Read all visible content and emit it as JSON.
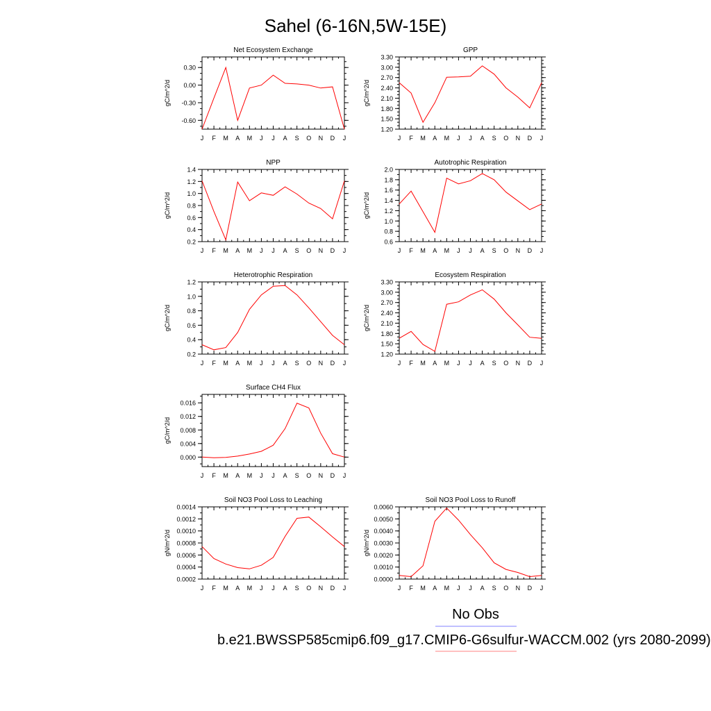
{
  "figure": {
    "title": "Sahel (6-16N,5W-15E)",
    "legend": {
      "obs_label": "No Obs",
      "obs_color": "#8080ff",
      "model_label": "b.e21.BWSSP585cmip6.f09_g17.CMIP6-G6sulfur-WACCM.002 (yrs 2080-2099)",
      "model_color": "#ff8080"
    },
    "line_color": "#ff0000"
  },
  "months": [
    "J",
    "F",
    "M",
    "A",
    "M",
    "J",
    "J",
    "A",
    "S",
    "O",
    "N",
    "D",
    "J"
  ],
  "chart_data": [
    {
      "type": "line",
      "title": "Net Ecosystem Exchange",
      "ylabel": "gC/m^2/d",
      "ylim": [
        -0.75,
        0.48
      ],
      "yticks": [
        "0.30",
        "0.00",
        "-0.30",
        "-0.60"
      ],
      "ytick_values": [
        0.3,
        0.0,
        -0.3,
        -0.6
      ],
      "minor_step": 0.1,
      "values": [
        -0.75,
        -0.22,
        0.3,
        -0.6,
        -0.05,
        0.0,
        0.17,
        0.03,
        0.02,
        0.0,
        -0.05,
        -0.03,
        -0.75
      ]
    },
    {
      "type": "line",
      "title": "GPP",
      "ylabel": "gC/m^2/d",
      "ylim": [
        1.2,
        3.3
      ],
      "yticks": [
        "3.30",
        "3.00",
        "2.70",
        "2.40",
        "2.10",
        "1.80",
        "1.50",
        "1.20"
      ],
      "ytick_values": [
        3.3,
        3.0,
        2.7,
        2.4,
        2.1,
        1.8,
        1.5,
        1.2
      ],
      "minor_step": 0.1,
      "values": [
        2.55,
        2.25,
        1.4,
        1.97,
        2.71,
        2.72,
        2.74,
        3.04,
        2.8,
        2.4,
        2.13,
        1.82,
        2.55
      ]
    },
    {
      "type": "line",
      "title": "NPP",
      "ylabel": "gC/m^2/d",
      "ylim": [
        0.2,
        1.4
      ],
      "yticks": [
        "1.4",
        "1.2",
        "1.0",
        "0.8",
        "0.6",
        "0.4",
        "0.2"
      ],
      "ytick_values": [
        1.4,
        1.2,
        1.0,
        0.8,
        0.6,
        0.4,
        0.2
      ],
      "minor_step": 0.1,
      "values": [
        1.21,
        0.7,
        0.23,
        1.19,
        0.88,
        1.01,
        0.97,
        1.11,
        0.99,
        0.84,
        0.75,
        0.58,
        1.21
      ]
    },
    {
      "type": "line",
      "title": "Autotrophic Respiration",
      "ylabel": "gC/m^2/d",
      "ylim": [
        0.6,
        2.0
      ],
      "yticks": [
        "2.0",
        "1.8",
        "1.6",
        "1.4",
        "1.2",
        "1.0",
        "0.8",
        "0.6"
      ],
      "ytick_values": [
        2.0,
        1.8,
        1.6,
        1.4,
        1.2,
        1.0,
        0.8,
        0.6
      ],
      "minor_step": 0.1,
      "values": [
        1.33,
        1.58,
        1.18,
        0.78,
        1.83,
        1.72,
        1.78,
        1.92,
        1.8,
        1.56,
        1.39,
        1.22,
        1.33
      ]
    },
    {
      "type": "line",
      "title": "Heterotrophic Respiration",
      "ylabel": "gC/m^2/d",
      "ylim": [
        0.2,
        1.2
      ],
      "yticks": [
        "1.2",
        "1.0",
        "0.8",
        "0.6",
        "0.4",
        "0.2"
      ],
      "ytick_values": [
        1.2,
        1.0,
        0.8,
        0.6,
        0.4,
        0.2
      ],
      "minor_step": 0.1,
      "values": [
        0.33,
        0.26,
        0.29,
        0.5,
        0.82,
        1.02,
        1.14,
        1.15,
        1.02,
        0.84,
        0.65,
        0.46,
        0.33
      ]
    },
    {
      "type": "line",
      "title": "Ecosystem Respiration",
      "ylabel": "gC/m^2/d",
      "ylim": [
        1.2,
        3.3
      ],
      "yticks": [
        "3.30",
        "3.00",
        "2.70",
        "2.40",
        "2.10",
        "1.80",
        "1.50",
        "1.20"
      ],
      "ytick_values": [
        3.3,
        3.0,
        2.7,
        2.4,
        2.1,
        1.8,
        1.5,
        1.2
      ],
      "minor_step": 0.1,
      "values": [
        1.66,
        1.86,
        1.48,
        1.28,
        2.65,
        2.72,
        2.92,
        3.07,
        2.8,
        2.4,
        2.05,
        1.69,
        1.66
      ]
    },
    {
      "type": "line",
      "title": "Surface CH4 Flux",
      "ylabel": "gC/m^2/d",
      "ylim": [
        -0.0028,
        0.0185
      ],
      "yticks": [
        "0.016",
        "0.012",
        "0.008",
        "0.004",
        "0.000"
      ],
      "ytick_values": [
        0.016,
        0.012,
        0.008,
        0.004,
        0.0
      ],
      "minor_step": 0.002,
      "values": [
        0.0,
        -0.0002,
        -0.0001,
        0.0003,
        0.0009,
        0.0017,
        0.0035,
        0.0084,
        0.0159,
        0.0145,
        0.0071,
        0.001,
        0.0
      ]
    },
    {
      "type": "line",
      "title": "Soil NO3 Pool Loss to Leaching",
      "ylabel": "gN/m^2/d",
      "ylim": [
        0.0002,
        0.0014
      ],
      "yticks": [
        "0.0014",
        "0.0012",
        "0.0010",
        "0.0008",
        "0.0006",
        "0.0004",
        "0.0002"
      ],
      "ytick_values": [
        0.0014,
        0.0012,
        0.001,
        0.0008,
        0.0006,
        0.0004,
        0.0002
      ],
      "minor_step": 0.0001,
      "values": [
        0.00074,
        0.00054,
        0.00045,
        0.00039,
        0.00037,
        0.00043,
        0.00056,
        0.00091,
        0.00121,
        0.00123,
        0.00107,
        0.0009,
        0.00074
      ]
    },
    {
      "type": "line",
      "title": "Soil NO3 Pool Loss to Runoff",
      "ylabel": "gN/m^2/d",
      "ylim": [
        0.0,
        0.006
      ],
      "yticks": [
        "0.0060",
        "0.0050",
        "0.0040",
        "0.0030",
        "0.0020",
        "0.0010",
        "0.0000"
      ],
      "ytick_values": [
        0.006,
        0.005,
        0.004,
        0.003,
        0.002,
        0.001,
        0.0
      ],
      "minor_step": 0.0005,
      "values": [
        0.0003,
        0.0002,
        0.0011,
        0.0048,
        0.0059,
        0.0049,
        0.0037,
        0.0026,
        0.00135,
        0.0008,
        0.00055,
        0.0002,
        0.0003
      ]
    }
  ]
}
